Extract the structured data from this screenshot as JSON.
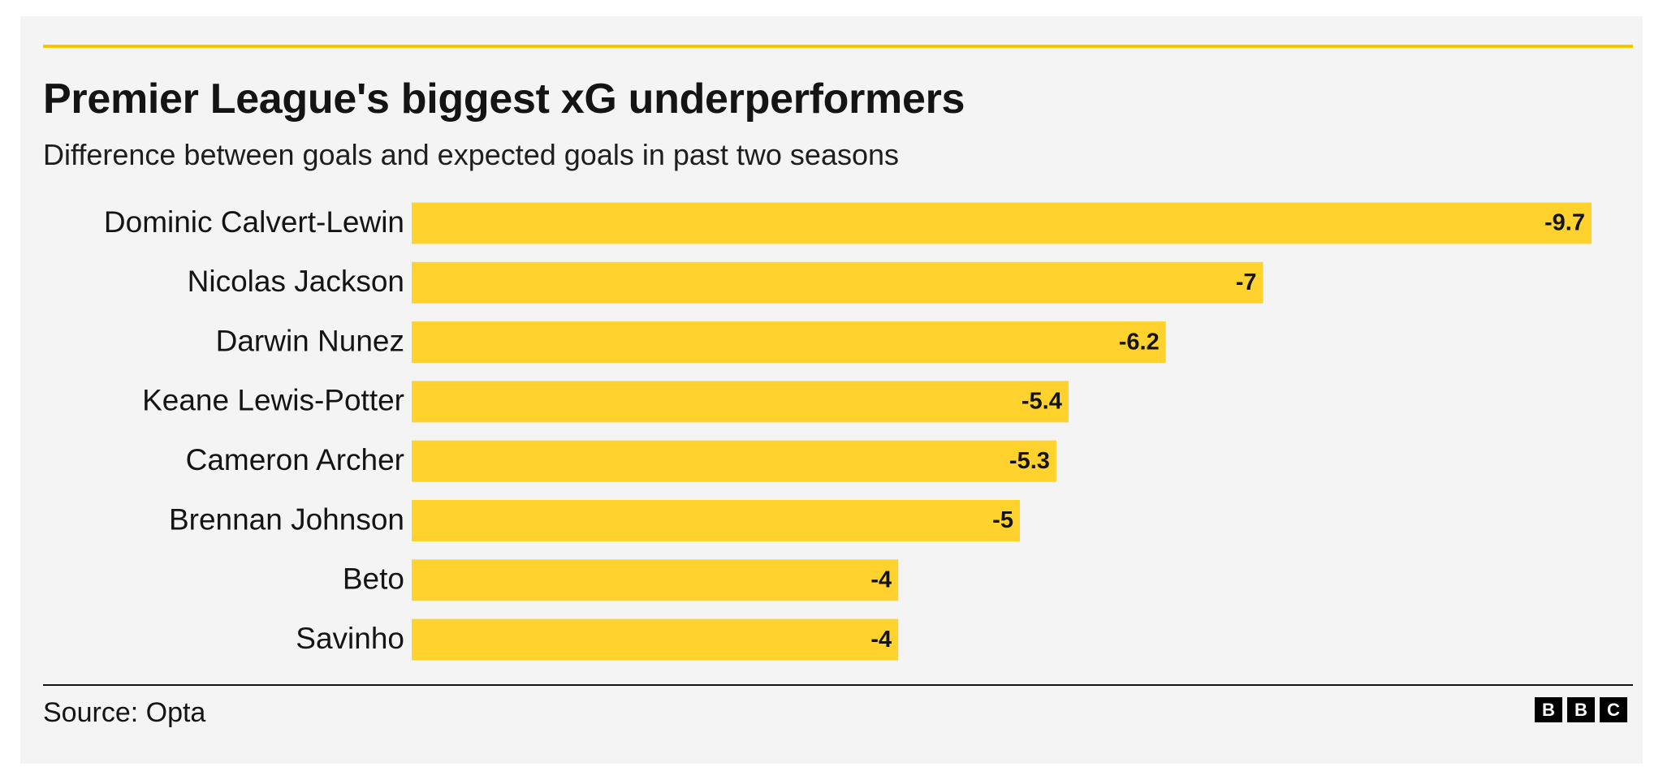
{
  "title": "Premier League's biggest xG underperformers",
  "subtitle": "Difference between goals and expected goals in past two seasons",
  "source": "Source: Opta",
  "logo": [
    "B",
    "B",
    "C"
  ],
  "colors": {
    "bar": "#ffd22e",
    "accent_rule": "#f5c700",
    "background": "#f4f4f4",
    "text": "#141414"
  },
  "chart_data": {
    "type": "bar",
    "orientation": "horizontal",
    "title": "Premier League's biggest xG underperformers",
    "subtitle": "Difference between goals and expected goals in past two seasons",
    "categories": [
      "Dominic Calvert-Lewin",
      "Nicolas Jackson",
      "Darwin Nunez",
      "Keane Lewis-Potter",
      "Cameron Archer",
      "Brennan Johnson",
      "Beto",
      "Savinho"
    ],
    "values": [
      -9.7,
      -7,
      -6.2,
      -5.4,
      -5.3,
      -5,
      -4,
      -4
    ],
    "value_labels": [
      "-9.7",
      "-7",
      "-6.2",
      "-5.4",
      "-5.3",
      "-5",
      "-4",
      "-4"
    ],
    "xlim": [
      0,
      -9.7
    ],
    "grid": false,
    "legend": "none"
  }
}
